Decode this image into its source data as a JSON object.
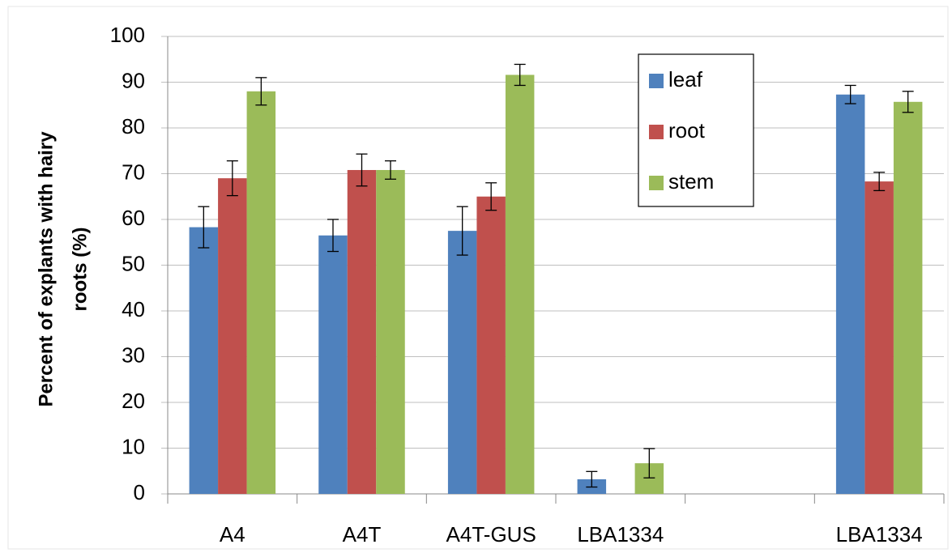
{
  "chart_data": {
    "type": "bar",
    "ylabel": [
      "Percent of explants with hairy",
      "roots  (%)"
    ],
    "categories": [
      "A4",
      "A4T",
      "A4T-GUS",
      "LBA1334",
      null,
      "LBA1334"
    ],
    "series": [
      {
        "name": "leaf",
        "color": "#4f81bd",
        "values": [
          58.3,
          56.5,
          57.5,
          3.2,
          null,
          87.3
        ],
        "errors": [
          4.5,
          3.5,
          5.3,
          1.7,
          null,
          2
        ]
      },
      {
        "name": "root",
        "color": "#c0504d",
        "values": [
          69,
          70.8,
          65,
          0,
          null,
          68.3
        ],
        "errors": [
          3.8,
          3.5,
          3,
          null,
          null,
          2
        ]
      },
      {
        "name": "stem",
        "color": "#9bbb59",
        "values": [
          88,
          70.8,
          91.6,
          6.7,
          null,
          85.7
        ],
        "errors": [
          3,
          2,
          2.3,
          3.2,
          null,
          2.3
        ]
      }
    ],
    "ylim": [
      0,
      100
    ],
    "yticks": [
      0,
      10,
      20,
      30,
      40,
      50,
      60,
      70,
      80,
      90,
      100
    ],
    "grid": true,
    "legend": "top-right"
  }
}
